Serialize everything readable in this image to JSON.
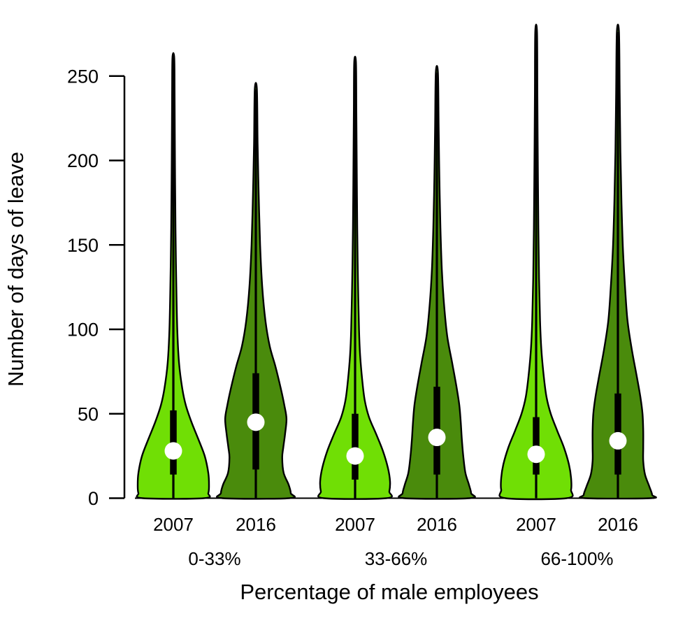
{
  "chart_data": {
    "type": "violin",
    "title": "",
    "xlabel": "Percentage of male employees",
    "ylabel": "Number of days of leave",
    "ylim": [
      0,
      250
    ],
    "y_ticks": [
      0,
      50,
      100,
      150,
      200,
      250
    ],
    "grid": false,
    "legend": "none",
    "years": [
      "2007",
      "2016"
    ],
    "group_labels": [
      "0-33%",
      "33-66%",
      "66-100%"
    ],
    "colors": {
      "year_2007": "#70df05",
      "year_2016": "#4a8b0c",
      "median_dot": "#ffffff",
      "outline": "#000000",
      "box": "#000000"
    },
    "violins": [
      {
        "group": "0-33%",
        "year": "2007",
        "median": 28,
        "q1": 14,
        "q3": 52,
        "whisker_low": 0,
        "whisker_high": 261,
        "density_profile": [
          [
            261,
            0.025
          ],
          [
            240,
            0.035
          ],
          [
            200,
            0.045
          ],
          [
            160,
            0.06
          ],
          [
            130,
            0.08
          ],
          [
            100,
            0.11
          ],
          [
            80,
            0.16
          ],
          [
            65,
            0.25
          ],
          [
            55,
            0.35
          ],
          [
            45,
            0.51
          ],
          [
            35,
            0.7
          ],
          [
            25,
            0.88
          ],
          [
            15,
            0.98
          ],
          [
            8,
            1.0
          ],
          [
            3,
            0.98
          ],
          [
            0,
            0.86
          ]
        ]
      },
      {
        "group": "0-33%",
        "year": "2016",
        "median": 45,
        "q1": 17,
        "q3": 74,
        "whisker_low": 0,
        "whisker_high": 242,
        "density_profile": [
          [
            242,
            0.03
          ],
          [
            210,
            0.05
          ],
          [
            180,
            0.08
          ],
          [
            150,
            0.12
          ],
          [
            125,
            0.18
          ],
          [
            105,
            0.27
          ],
          [
            90,
            0.39
          ],
          [
            78,
            0.55
          ],
          [
            65,
            0.7
          ],
          [
            55,
            0.8
          ],
          [
            47,
            0.86
          ],
          [
            38,
            0.82
          ],
          [
            30,
            0.77
          ],
          [
            24,
            0.74
          ],
          [
            15,
            0.78
          ],
          [
            8,
            0.92
          ],
          [
            3,
            0.98
          ],
          [
            0,
            0.94
          ]
        ]
      },
      {
        "group": "33-66%",
        "year": "2007",
        "median": 25,
        "q1": 11,
        "q3": 50,
        "whisker_low": 0,
        "whisker_high": 258,
        "density_profile": [
          [
            258,
            0.025
          ],
          [
            230,
            0.035
          ],
          [
            200,
            0.045
          ],
          [
            160,
            0.06
          ],
          [
            130,
            0.08
          ],
          [
            100,
            0.11
          ],
          [
            85,
            0.14
          ],
          [
            70,
            0.2
          ],
          [
            58,
            0.27
          ],
          [
            48,
            0.39
          ],
          [
            38,
            0.59
          ],
          [
            28,
            0.78
          ],
          [
            18,
            0.92
          ],
          [
            10,
            0.98
          ],
          [
            4,
            0.96
          ],
          [
            0,
            0.88
          ]
        ]
      },
      {
        "group": "33-66%",
        "year": "2016",
        "median": 36,
        "q1": 14,
        "q3": 66,
        "whisker_low": 0,
        "whisker_high": 252,
        "density_profile": [
          [
            252,
            0.03
          ],
          [
            220,
            0.05
          ],
          [
            190,
            0.07
          ],
          [
            160,
            0.1
          ],
          [
            135,
            0.14
          ],
          [
            115,
            0.2
          ],
          [
            96,
            0.29
          ],
          [
            80,
            0.43
          ],
          [
            66,
            0.55
          ],
          [
            55,
            0.63
          ],
          [
            45,
            0.67
          ],
          [
            35,
            0.7
          ],
          [
            25,
            0.74
          ],
          [
            15,
            0.8
          ],
          [
            8,
            0.9
          ],
          [
            3,
            0.96
          ],
          [
            0,
            0.92
          ]
        ]
      },
      {
        "group": "66-100%",
        "year": "2007",
        "median": 26,
        "q1": 14,
        "q3": 48,
        "whisker_low": 0,
        "whisker_high": 276,
        "density_profile": [
          [
            276,
            0.025
          ],
          [
            240,
            0.035
          ],
          [
            200,
            0.047
          ],
          [
            160,
            0.063
          ],
          [
            130,
            0.082
          ],
          [
            105,
            0.11
          ],
          [
            88,
            0.147
          ],
          [
            72,
            0.215
          ],
          [
            60,
            0.29
          ],
          [
            50,
            0.41
          ],
          [
            40,
            0.59
          ],
          [
            30,
            0.78
          ],
          [
            20,
            0.92
          ],
          [
            12,
            0.98
          ],
          [
            5,
            0.98
          ],
          [
            0,
            0.86
          ]
        ]
      },
      {
        "group": "66-100%",
        "year": "2016",
        "median": 34,
        "q1": 14,
        "q3": 62,
        "whisker_low": 0,
        "whisker_high": 276,
        "density_profile": [
          [
            276,
            0.03
          ],
          [
            240,
            0.05
          ],
          [
            205,
            0.07
          ],
          [
            175,
            0.1
          ],
          [
            148,
            0.14
          ],
          [
            125,
            0.2
          ],
          [
            105,
            0.27
          ],
          [
            88,
            0.39
          ],
          [
            72,
            0.53
          ],
          [
            60,
            0.63
          ],
          [
            50,
            0.69
          ],
          [
            40,
            0.71
          ],
          [
            30,
            0.71
          ],
          [
            22,
            0.71
          ],
          [
            14,
            0.76
          ],
          [
            7,
            0.88
          ],
          [
            2,
            0.96
          ],
          [
            0,
            0.92
          ]
        ]
      }
    ]
  }
}
